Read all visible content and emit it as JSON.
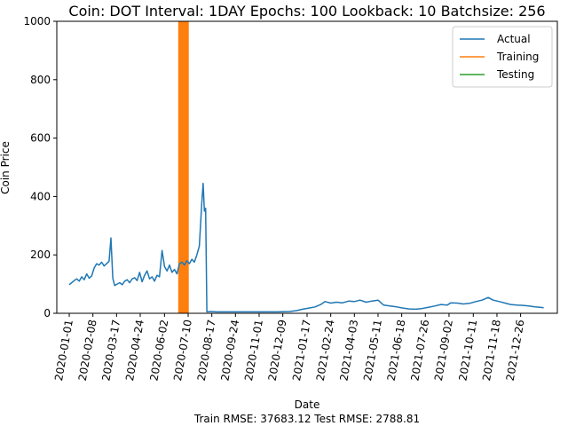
{
  "chart_data": {
    "type": "line",
    "title": "Coin: DOT Interval: 1DAY Epochs: 100 Lookback: 10 Batchsize: 256",
    "xlabel": "Date",
    "ylabel": "Coin Price",
    "footer": "Train RMSE: 37683.12 Test RMSE: 2788.81",
    "ylim": [
      0,
      1000
    ],
    "xlim": [
      "2019-12-12",
      "2022-02-23"
    ],
    "yticks": [
      "0",
      "200",
      "400",
      "600",
      "800",
      "1000"
    ],
    "xticks": [
      "2020-01-01",
      "2020-02-08",
      "2020-03-17",
      "2020-04-24",
      "2020-06-02",
      "2020-07-10",
      "2020-08-17",
      "2020-09-24",
      "2020-11-01",
      "2020-12-09",
      "2021-01-17",
      "2021-02-24",
      "2021-04-03",
      "2021-05-11",
      "2021-06-18",
      "2021-07-26",
      "2021-09-02",
      "2021-10-11",
      "2021-11-18",
      "2021-12-26"
    ],
    "legend_position": "top-right",
    "series": [
      {
        "name": "Actual",
        "color": "#1f77b4",
        "points": [
          [
            "2020-01-01",
            98
          ],
          [
            "2020-01-05",
            105
          ],
          [
            "2020-01-09",
            112
          ],
          [
            "2020-01-13",
            118
          ],
          [
            "2020-01-17",
            110
          ],
          [
            "2020-01-21",
            125
          ],
          [
            "2020-01-25",
            115
          ],
          [
            "2020-01-29",
            135
          ],
          [
            "2020-02-02",
            120
          ],
          [
            "2020-02-06",
            128
          ],
          [
            "2020-02-10",
            155
          ],
          [
            "2020-02-14",
            170
          ],
          [
            "2020-02-18",
            165
          ],
          [
            "2020-02-22",
            175
          ],
          [
            "2020-02-26",
            162
          ],
          [
            "2020-03-01",
            170
          ],
          [
            "2020-03-05",
            178
          ],
          [
            "2020-03-08",
            258
          ],
          [
            "2020-03-11",
            120
          ],
          [
            "2020-03-14",
            95
          ],
          [
            "2020-03-18",
            100
          ],
          [
            "2020-03-22",
            105
          ],
          [
            "2020-03-26",
            98
          ],
          [
            "2020-03-30",
            110
          ],
          [
            "2020-04-03",
            115
          ],
          [
            "2020-04-07",
            105
          ],
          [
            "2020-04-11",
            118
          ],
          [
            "2020-04-15",
            122
          ],
          [
            "2020-04-19",
            112
          ],
          [
            "2020-04-23",
            140
          ],
          [
            "2020-04-27",
            108
          ],
          [
            "2020-05-01",
            130
          ],
          [
            "2020-05-05",
            145
          ],
          [
            "2020-05-09",
            118
          ],
          [
            "2020-05-13",
            125
          ],
          [
            "2020-05-17",
            110
          ],
          [
            "2020-05-21",
            130
          ],
          [
            "2020-05-25",
            125
          ],
          [
            "2020-05-29",
            215
          ],
          [
            "2020-06-02",
            160
          ],
          [
            "2020-06-06",
            145
          ],
          [
            "2020-06-10",
            165
          ],
          [
            "2020-06-14",
            140
          ],
          [
            "2020-06-18",
            150
          ],
          [
            "2020-06-22",
            135
          ],
          [
            "2020-06-26",
            170
          ],
          [
            "2020-06-30",
            175
          ],
          [
            "2020-07-04",
            165
          ],
          [
            "2020-07-08",
            180
          ],
          [
            "2020-07-12",
            170
          ],
          [
            "2020-07-16",
            185
          ],
          [
            "2020-07-20",
            175
          ],
          [
            "2020-07-24",
            200
          ],
          [
            "2020-07-28",
            230
          ],
          [
            "2020-08-01",
            380
          ],
          [
            "2020-08-03",
            445
          ],
          [
            "2020-08-05",
            350
          ],
          [
            "2020-08-07",
            360
          ],
          [
            "2020-08-09",
            5
          ],
          [
            "2020-08-15",
            6
          ],
          [
            "2020-08-25",
            5
          ],
          [
            "2020-09-10",
            5
          ],
          [
            "2020-09-30",
            5
          ],
          [
            "2020-10-20",
            5
          ],
          [
            "2020-11-10",
            5
          ],
          [
            "2020-12-01",
            5
          ],
          [
            "2020-12-20",
            6
          ],
          [
            "2020-12-31",
            9
          ],
          [
            "2021-01-10",
            14
          ],
          [
            "2021-01-20",
            18
          ],
          [
            "2021-01-30",
            22
          ],
          [
            "2021-02-08",
            30
          ],
          [
            "2021-02-15",
            40
          ],
          [
            "2021-02-24",
            35
          ],
          [
            "2021-03-05",
            38
          ],
          [
            "2021-03-15",
            36
          ],
          [
            "2021-03-25",
            42
          ],
          [
            "2021-04-03",
            40
          ],
          [
            "2021-04-12",
            45
          ],
          [
            "2021-04-22",
            38
          ],
          [
            "2021-05-01",
            42
          ],
          [
            "2021-05-11",
            45
          ],
          [
            "2021-05-20",
            28
          ],
          [
            "2021-05-30",
            25
          ],
          [
            "2021-06-10",
            22
          ],
          [
            "2021-06-20",
            18
          ],
          [
            "2021-06-30",
            15
          ],
          [
            "2021-07-10",
            14
          ],
          [
            "2021-07-20",
            16
          ],
          [
            "2021-07-30",
            20
          ],
          [
            "2021-08-10",
            25
          ],
          [
            "2021-08-20",
            30
          ],
          [
            "2021-08-30",
            28
          ],
          [
            "2021-09-05",
            36
          ],
          [
            "2021-09-15",
            35
          ],
          [
            "2021-09-25",
            32
          ],
          [
            "2021-10-05",
            34
          ],
          [
            "2021-10-15",
            40
          ],
          [
            "2021-10-25",
            45
          ],
          [
            "2021-11-04",
            54
          ],
          [
            "2021-11-12",
            45
          ],
          [
            "2021-11-22",
            40
          ],
          [
            "2021-12-01",
            35
          ],
          [
            "2021-12-10",
            30
          ],
          [
            "2021-12-20",
            28
          ],
          [
            "2021-12-30",
            27
          ],
          [
            "2022-01-08",
            25
          ],
          [
            "2022-01-18",
            22
          ],
          [
            "2022-01-28",
            20
          ],
          [
            "2022-02-01",
            19
          ]
        ]
      },
      {
        "name": "Training",
        "color": "#ff7f0e",
        "band": [
          "2020-06-24",
          "2020-07-11"
        ]
      },
      {
        "name": "Testing",
        "color": "#2ca02c",
        "points": []
      }
    ]
  }
}
